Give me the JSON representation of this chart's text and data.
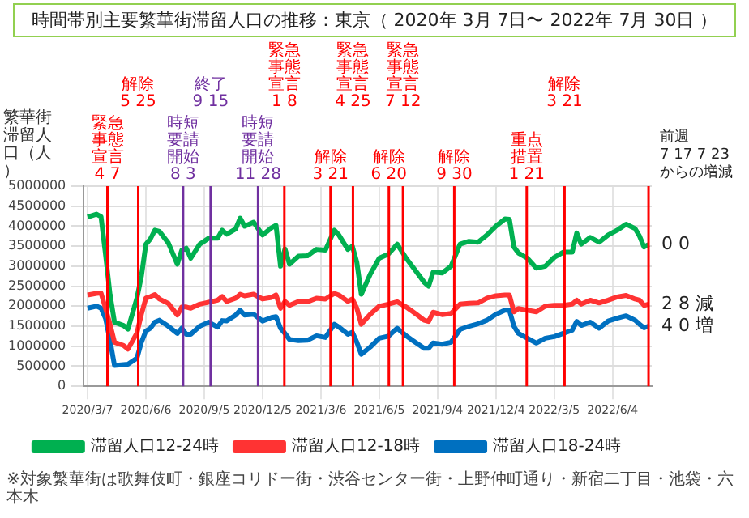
{
  "chart_data": {
    "type": "line",
    "title": "時間帯別主要繁華街滞留人口の推移：東京（ 2020年 3月 7日〜 2022年 7月 30日 ）",
    "ylabel": "繁華街滞留人口（人）",
    "xlim": [
      "2020-03-01",
      "2022-08-04"
    ],
    "xticks": [
      {
        "value": "2020-03-07",
        "label": "2020/3/7"
      },
      {
        "value": "2020-06-06",
        "label": "2020/6/6"
      },
      {
        "value": "2020-09-05",
        "label": "2020/9/5"
      },
      {
        "value": "2020-12-05",
        "label": "2020/12/5"
      },
      {
        "value": "2021-03-06",
        "label": "2021/3/6"
      },
      {
        "value": "2021-06-05",
        "label": "2021/6/5"
      },
      {
        "value": "2021-09-04",
        "label": "2021/9/4"
      },
      {
        "value": "2021-12-04",
        "label": "2021/12/4"
      },
      {
        "value": "2022-03-05",
        "label": "2022/3/5"
      },
      {
        "value": "2022-06-04",
        "label": "2022/6/4"
      }
    ],
    "x": [
      "2020-03-07",
      "2020-03-21",
      "2020-03-28",
      "2020-04-04",
      "2020-04-11",
      "2020-04-18",
      "2020-05-02",
      "2020-05-09",
      "2020-05-23",
      "2020-05-30",
      "2020-06-06",
      "2020-06-13",
      "2020-06-20",
      "2020-06-27",
      "2020-07-11",
      "2020-07-25",
      "2020-08-01",
      "2020-08-08",
      "2020-08-15",
      "2020-08-29",
      "2020-09-12",
      "2020-09-26",
      "2020-10-03",
      "2020-10-10",
      "2020-10-24",
      "2020-10-31",
      "2020-11-07",
      "2020-11-21",
      "2020-12-05",
      "2020-12-19",
      "2020-12-26",
      "2021-01-02",
      "2021-01-09",
      "2021-01-16",
      "2021-01-30",
      "2021-02-13",
      "2021-02-27",
      "2021-03-13",
      "2021-03-27",
      "2021-04-03",
      "2021-04-17",
      "2021-04-24",
      "2021-05-01",
      "2021-05-08",
      "2021-05-22",
      "2021-06-05",
      "2021-06-19",
      "2021-07-03",
      "2021-07-17",
      "2021-07-31",
      "2021-08-14",
      "2021-08-21",
      "2021-08-28",
      "2021-09-11",
      "2021-09-25",
      "2021-10-09",
      "2021-10-23",
      "2021-11-06",
      "2021-11-20",
      "2021-12-04",
      "2021-12-18",
      "2021-12-25",
      "2022-01-01",
      "2022-01-08",
      "2022-01-22",
      "2022-02-05",
      "2022-02-19",
      "2022-03-05",
      "2022-03-19",
      "2022-04-02",
      "2022-04-09",
      "2022-04-16",
      "2022-04-30",
      "2022-05-14",
      "2022-05-28",
      "2022-06-11",
      "2022-06-25",
      "2022-07-09",
      "2022-07-16",
      "2022-07-23",
      "2022-07-30"
    ],
    "series": [
      {
        "name": "滞留人口12-24時",
        "color": "#00b050",
        "values": [
          4230000,
          4300000,
          4240000,
          3300000,
          2300000,
          1600000,
          1520000,
          1430000,
          2200000,
          2750000,
          3550000,
          3680000,
          3900000,
          3870000,
          3580000,
          3050000,
          3400000,
          3450000,
          3200000,
          3550000,
          3700000,
          3700000,
          3900000,
          3800000,
          3930000,
          4200000,
          4000000,
          4100000,
          3780000,
          3960000,
          4020000,
          3000000,
          3430000,
          3050000,
          3250000,
          3260000,
          3420000,
          3400000,
          3900000,
          3780000,
          3420000,
          3500000,
          3100000,
          2300000,
          2800000,
          3200000,
          3300000,
          3550000,
          3200000,
          2900000,
          2600000,
          2500000,
          2850000,
          2830000,
          3000000,
          3550000,
          3620000,
          3600000,
          3780000,
          4000000,
          4180000,
          4170000,
          3480000,
          3330000,
          3200000,
          2950000,
          3000000,
          3220000,
          3350000,
          3350000,
          3830000,
          3550000,
          3720000,
          3600000,
          3780000,
          3900000,
          4050000,
          3940000,
          3750000,
          3480000,
          3540000
        ]
      },
      {
        "name": "滞留人口12-18時",
        "color": "#ff3333",
        "values": [
          2280000,
          2320000,
          2330000,
          1950000,
          1550000,
          1100000,
          1020000,
          930000,
          1330000,
          1800000,
          2200000,
          2240000,
          2290000,
          2180000,
          2070000,
          1780000,
          1980000,
          1980000,
          1950000,
          2050000,
          2100000,
          2150000,
          2240000,
          2120000,
          2200000,
          2300000,
          2260000,
          2300000,
          2180000,
          2220000,
          2280000,
          1950000,
          2120000,
          2020000,
          2120000,
          2110000,
          2200000,
          2180000,
          2320000,
          2280000,
          2120000,
          2180000,
          1950000,
          1550000,
          1800000,
          2000000,
          2050000,
          2110000,
          1980000,
          1820000,
          1650000,
          1620000,
          1850000,
          1790000,
          1820000,
          2050000,
          2070000,
          2080000,
          2200000,
          2260000,
          2280000,
          2280000,
          1860000,
          1940000,
          1900000,
          1860000,
          2000000,
          2020000,
          2020000,
          2050000,
          2150000,
          2050000,
          2150000,
          2080000,
          2150000,
          2230000,
          2270000,
          2180000,
          2150000,
          2020000,
          2050000
        ]
      },
      {
        "name": "滞留人口18-24時",
        "color": "#0070c0",
        "values": [
          1950000,
          2000000,
          1950000,
          1700000,
          1150000,
          520000,
          540000,
          550000,
          700000,
          1100000,
          1380000,
          1450000,
          1600000,
          1650000,
          1500000,
          1320000,
          1450000,
          1300000,
          1300000,
          1500000,
          1600000,
          1480000,
          1640000,
          1630000,
          1780000,
          1900000,
          1780000,
          1800000,
          1630000,
          1720000,
          1740000,
          1450000,
          1320000,
          1170000,
          1140000,
          1150000,
          1260000,
          1220000,
          1550000,
          1480000,
          1300000,
          1350000,
          1100000,
          800000,
          980000,
          1200000,
          1250000,
          1450000,
          1260000,
          1100000,
          950000,
          950000,
          1080000,
          1050000,
          1100000,
          1420000,
          1500000,
          1560000,
          1650000,
          1800000,
          1900000,
          1900000,
          1500000,
          1320000,
          1200000,
          1080000,
          1200000,
          1240000,
          1320000,
          1400000,
          1620000,
          1520000,
          1600000,
          1450000,
          1630000,
          1700000,
          1760000,
          1650000,
          1550000,
          1460000,
          1500000
        ]
      }
    ],
    "ylim": [
      0,
      5000000
    ],
    "yticks": [
      0,
      500000,
      1000000,
      1500000,
      2000000,
      2500000,
      3000000,
      3500000,
      4000000,
      4500000,
      5000000
    ],
    "grid": true,
    "legend": "bottom",
    "marker": "none",
    "line_style": "solid",
    "ref_lines": [
      {
        "axis": "x",
        "value": "2020-04-07",
        "label": "緊急事態宣言\n4 7",
        "color": "#ff0000"
      },
      {
        "axis": "x",
        "value": "2020-05-25",
        "label": "解除\n5 25",
        "color": "#ff0000"
      },
      {
        "axis": "x",
        "value": "2020-08-03",
        "label": "時短要請開始\n8 3",
        "color": "#7030a0"
      },
      {
        "axis": "x",
        "value": "2020-09-15",
        "label": "終了\n9 15",
        "color": "#7030a0"
      },
      {
        "axis": "x",
        "value": "2020-11-28",
        "label": "時短要請開始\n11 28",
        "color": "#7030a0"
      },
      {
        "axis": "x",
        "value": "2021-01-08",
        "label": "緊急事態宣言\n1 8",
        "color": "#ff0000"
      },
      {
        "axis": "x",
        "value": "2021-03-21",
        "label": "解除\n3 21",
        "color": "#ff0000"
      },
      {
        "axis": "x",
        "value": "2021-04-25",
        "label": "緊急事態宣言\n4 25",
        "color": "#ff0000"
      },
      {
        "axis": "x",
        "value": "2021-06-20",
        "label": "解除\n6 20",
        "color": "#ff0000"
      },
      {
        "axis": "x",
        "value": "2021-07-12",
        "label": "緊急事態宣言\n7 12",
        "color": "#ff0000"
      },
      {
        "axis": "x",
        "value": "2021-09-30",
        "label": "解除\n9 30",
        "color": "#ff0000"
      },
      {
        "axis": "x",
        "value": "2022-01-21",
        "label": "重点措置\n1 21",
        "color": "#ff0000"
      },
      {
        "axis": "x",
        "value": "2022-03-21",
        "label": "解除\n3 21",
        "color": "#ff0000"
      },
      {
        "axis": "x",
        "value": "2022-07-30",
        "color": "#ff0000"
      }
    ],
    "annotations": [
      "前週\n7 17 7 23\nからの増減",
      {
        "text": "0 0",
        "x": "2022-07-30",
        "y": 3540000
      },
      {
        "text": "2 8 減",
        "x": "2022-07-30",
        "y": 2050000
      },
      {
        "text": "4 0 増",
        "x": "2022-07-30",
        "y": 1500000
      },
      "※対象繁華街は歌舞伎町・銀座コリドー街・渋谷センター街・上野仲町通り・新宿二丁目・池袋・六本木"
    ]
  }
}
